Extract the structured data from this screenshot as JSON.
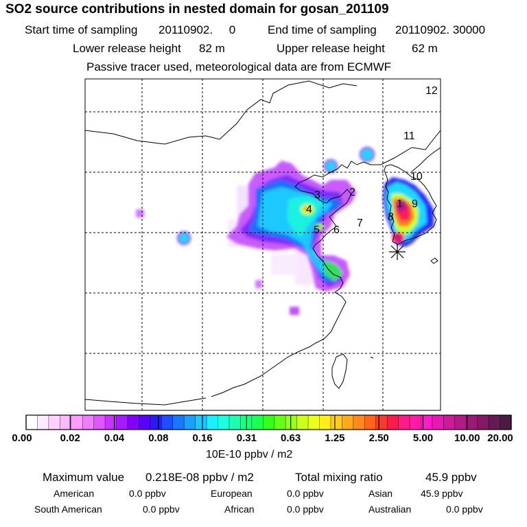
{
  "header": {
    "title": "SO2 source contributions in nested domain for gosan_201109",
    "start_label": "Start time of sampling",
    "start_value": "20110902.     0",
    "end_label": "End time of sampling",
    "end_value": "20110902. 30000",
    "lower_label": "Lower release height",
    "lower_value": "82 m",
    "upper_label": "Upper release height",
    "upper_value": "62 m",
    "tracer_note": "Passive tracer used, meteorological data are from ECMWF"
  },
  "map": {
    "region_labels": [
      "1",
      "2",
      "3",
      "4",
      "5",
      "6",
      "7",
      "8",
      "9",
      "10",
      "11",
      "12"
    ],
    "receptor_marker": "asterisk-receptor"
  },
  "colorbar": {
    "tick_labels": [
      "0.00",
      "0.02",
      "0.04",
      "0.08",
      "0.16",
      "0.31",
      "0.63",
      "1.25",
      "2.50",
      "5.00",
      "10.00",
      "20.00"
    ],
    "colors": [
      "#ffffff",
      "#ffeaff",
      "#ffd2ff",
      "#ffbaff",
      "#ff9cff",
      "#f07cff",
      "#df55ff",
      "#c833ff",
      "#a61aff",
      "#8400ff",
      "#5a00ff",
      "#2a1aff",
      "#1f4dff",
      "#1a78ff",
      "#1aa0ff",
      "#1ac8ff",
      "#1af0ff",
      "#1affe0",
      "#1affb0",
      "#1aff80",
      "#1aff50",
      "#33ff1a",
      "#66ff1a",
      "#99ff1a",
      "#ccff1a",
      "#eeff1a",
      "#ffee1a",
      "#ffcc1a",
      "#ffaa1a",
      "#ff881a",
      "#ff661a",
      "#ff3a2a",
      "#ff1a4a",
      "#ff1a8a",
      "#ff1aaa",
      "#ff1acc",
      "#e61ab0",
      "#cc1a99",
      "#b31a88",
      "#991a77",
      "#801a66",
      "#661a55",
      "#4d1a44"
    ],
    "units": "10E-10 ppbv / m2"
  },
  "summary": {
    "max_label": "Maximum value",
    "max_value": "0.218E-08 ppbv / m2",
    "total_label": "Total mixing ratio",
    "total_value": "45.9 ppbv",
    "regions": [
      {
        "label": "American",
        "value": "0.0 ppbv"
      },
      {
        "label": "European",
        "value": "0.0 ppbv"
      },
      {
        "label": "Asian",
        "value": "45.9 ppbv"
      },
      {
        "label": "South American",
        "value": "0.0 ppbv"
      },
      {
        "label": "African",
        "value": "0.0 ppbv"
      },
      {
        "label": "Australian",
        "value": "0.0 ppbv"
      }
    ]
  }
}
